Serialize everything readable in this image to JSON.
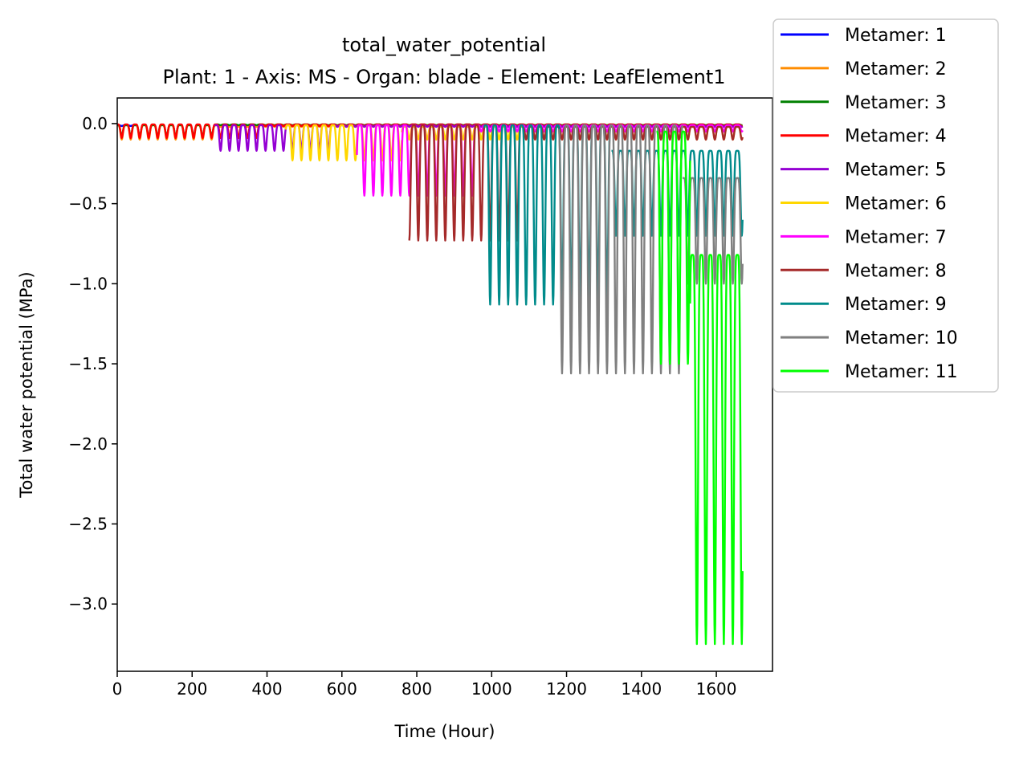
{
  "chart_data": {
    "type": "line",
    "title": "total_water_potential",
    "subtitle": "Plant: 1 - Axis: MS - Organ: blade - Element: LeafElement1",
    "xlabel": "Time (Hour)",
    "ylabel": "Total water potential (MPa)",
    "xlim": [
      0,
      1750
    ],
    "ylim": [
      -3.42,
      0.16
    ],
    "xticks": [
      0,
      200,
      400,
      600,
      800,
      1000,
      1200,
      1400,
      1600
    ],
    "yticks": [
      0.0,
      -0.5,
      -1.0,
      -1.5,
      -2.0,
      -2.5,
      -3.0
    ],
    "xtick_labels": [
      "0",
      "200",
      "400",
      "600",
      "800",
      "1000",
      "1200",
      "1400",
      "1600"
    ],
    "ytick_labels": [
      "0.0",
      "−0.5",
      "−1.0",
      "−1.5",
      "−2.0",
      "−2.5",
      "−3.0"
    ],
    "grid": false,
    "legend_position": "upper right, outside plot",
    "period_hours": 24,
    "series": [
      {
        "name": "Metamer: 1",
        "color": "#0000ff",
        "segments": [
          {
            "start": 0,
            "end": 50,
            "base": -0.01,
            "trough": -0.015
          }
        ]
      },
      {
        "name": "Metamer: 2",
        "color": "#ff8c00",
        "segments": [
          {
            "start": 0,
            "end": 265,
            "base": -0.01,
            "trough": -0.1
          },
          {
            "start": 265,
            "end": 1670,
            "base": -0.01,
            "trough": -0.02
          }
        ]
      },
      {
        "name": "Metamer: 3",
        "color": "#008000",
        "segments": [
          {
            "start": 0,
            "end": 265,
            "base": -0.01,
            "trough": -0.08
          },
          {
            "start": 265,
            "end": 1670,
            "base": -0.005,
            "trough": -0.01
          }
        ]
      },
      {
        "name": "Metamer: 4",
        "color": "#ff0000",
        "segments": [
          {
            "start": 0,
            "end": 380,
            "base": -0.005,
            "trough": -0.09
          },
          {
            "start": 380,
            "end": 1670,
            "base": -0.005,
            "trough": -0.015
          }
        ]
      },
      {
        "name": "Metamer: 5",
        "color": "#9400d3",
        "segments": [
          {
            "start": 260,
            "end": 580,
            "base": -0.01,
            "trough": -0.17
          },
          {
            "start": 580,
            "end": 1670,
            "base": -0.01,
            "trough": -0.02
          }
        ]
      },
      {
        "name": "Metamer: 6",
        "color": "#ffd700",
        "segments": [
          {
            "start": 450,
            "end": 760,
            "base": -0.01,
            "trough": -0.23
          },
          {
            "start": 760,
            "end": 1670,
            "base": -0.02,
            "trough": -0.1
          }
        ]
      },
      {
        "name": "Metamer: 7",
        "color": "#ff00ff",
        "segments": [
          {
            "start": 640,
            "end": 960,
            "base": -0.01,
            "trough": -0.45
          },
          {
            "start": 960,
            "end": 1670,
            "base": -0.01,
            "trough": -0.05
          }
        ]
      },
      {
        "name": "Metamer: 8",
        "color": "#a52a2a",
        "segments": [
          {
            "start": 780,
            "end": 1080,
            "base": -0.01,
            "trough": -0.73
          },
          {
            "start": 1080,
            "end": 1670,
            "base": -0.02,
            "trough": -0.1
          }
        ]
      },
      {
        "name": "Metamer: 9",
        "color": "#008b8b",
        "segments": [
          {
            "start": 980,
            "end": 1320,
            "base": -0.01,
            "trough": -1.13
          },
          {
            "start": 1320,
            "end": 1670,
            "base": -0.17,
            "trough": -0.7
          }
        ]
      },
      {
        "name": "Metamer: 10",
        "color": "#808080",
        "segments": [
          {
            "start": 1180,
            "end": 1510,
            "base": -0.01,
            "trough": -1.56
          },
          {
            "start": 1510,
            "end": 1670,
            "base": -0.34,
            "trough": -1.0
          }
        ]
      },
      {
        "name": "Metamer: 11",
        "color": "#00ff00",
        "segments": [
          {
            "start": 1440,
            "end": 1530,
            "base": -0.05,
            "trough": -1.5
          },
          {
            "start": 1530,
            "end": 1670,
            "base": -0.82,
            "trough": -3.25
          }
        ]
      }
    ]
  }
}
